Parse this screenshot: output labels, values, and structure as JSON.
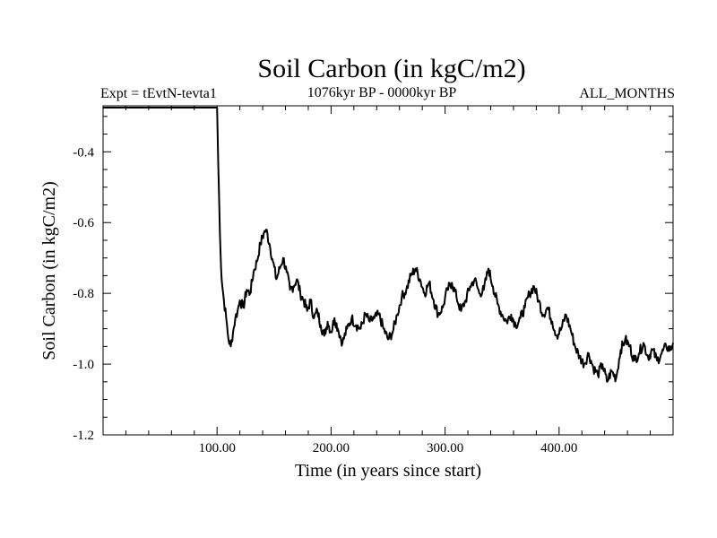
{
  "chart_data": {
    "type": "line",
    "title": "Soil Carbon (in kgC/m2)",
    "subtitle_left": "Expt = tEvtN-tevta1",
    "subtitle_center": "1076kyr BP - 0000kyr BP",
    "subtitle_right": "ALL_MONTHS",
    "xlabel": "Time (in years since start)",
    "ylabel": "Soil Carbon (in kgC/m2)",
    "xlim": [
      0,
      500
    ],
    "ylim": [
      -1.2,
      -0.27
    ],
    "xticks": [
      {
        "value": 100,
        "label": "100.00"
      },
      {
        "value": 200,
        "label": "200.00"
      },
      {
        "value": 300,
        "label": "300.00"
      },
      {
        "value": 400,
        "label": "400.00"
      }
    ],
    "yticks": [
      {
        "value": -0.4,
        "label": "-0.4"
      },
      {
        "value": -0.6,
        "label": "-0.6"
      },
      {
        "value": -0.8,
        "label": "-0.8"
      },
      {
        "value": -1.0,
        "label": "-1.0"
      },
      {
        "value": -1.2,
        "label": "-1.2"
      }
    ],
    "series": [
      {
        "name": "Soil Carbon",
        "color": "#000000",
        "x": [
          0,
          99,
          100,
          101,
          102,
          103,
          104,
          106,
          108,
          110,
          112,
          114,
          116,
          118,
          120,
          123,
          126,
          129,
          132,
          135,
          138,
          141,
          143,
          146,
          149,
          152,
          155,
          158,
          161,
          164,
          167,
          170,
          173,
          176,
          179,
          182,
          185,
          188,
          191,
          194,
          197,
          200,
          203,
          206,
          210,
          214,
          218,
          222,
          226,
          230,
          234,
          238,
          242,
          246,
          250,
          254,
          258,
          262,
          266,
          270,
          274,
          278,
          282,
          286,
          290,
          294,
          298,
          302,
          306,
          310,
          314,
          318,
          322,
          326,
          330,
          334,
          338,
          342,
          346,
          350,
          354,
          358,
          362,
          366,
          370,
          374,
          378,
          382,
          386,
          390,
          394,
          398,
          402,
          406,
          410,
          414,
          418,
          422,
          426,
          430,
          434,
          438,
          442,
          446,
          450,
          454,
          458,
          462,
          466,
          470,
          474,
          478,
          482,
          486,
          490,
          494,
          498,
          500
        ],
        "y": [
          -0.275,
          -0.275,
          -0.275,
          -0.43,
          -0.56,
          -0.68,
          -0.76,
          -0.82,
          -0.87,
          -0.93,
          -0.95,
          -0.91,
          -0.87,
          -0.85,
          -0.82,
          -0.84,
          -0.79,
          -0.8,
          -0.74,
          -0.71,
          -0.66,
          -0.63,
          -0.62,
          -0.66,
          -0.71,
          -0.76,
          -0.73,
          -0.7,
          -0.74,
          -0.79,
          -0.78,
          -0.76,
          -0.8,
          -0.82,
          -0.85,
          -0.82,
          -0.87,
          -0.85,
          -0.89,
          -0.92,
          -0.88,
          -0.91,
          -0.87,
          -0.9,
          -0.94,
          -0.9,
          -0.87,
          -0.89,
          -0.9,
          -0.86,
          -0.88,
          -0.87,
          -0.86,
          -0.9,
          -0.93,
          -0.91,
          -0.86,
          -0.81,
          -0.79,
          -0.75,
          -0.73,
          -0.76,
          -0.8,
          -0.77,
          -0.82,
          -0.86,
          -0.84,
          -0.79,
          -0.77,
          -0.81,
          -0.85,
          -0.82,
          -0.78,
          -0.76,
          -0.8,
          -0.79,
          -0.73,
          -0.78,
          -0.83,
          -0.86,
          -0.88,
          -0.86,
          -0.89,
          -0.87,
          -0.84,
          -0.8,
          -0.78,
          -0.82,
          -0.86,
          -0.84,
          -0.88,
          -0.92,
          -0.9,
          -0.86,
          -0.9,
          -0.95,
          -0.98,
          -1.0,
          -0.97,
          -1.01,
          -1.03,
          -1.0,
          -1.05,
          -1.02,
          -1.04,
          -0.96,
          -0.93,
          -0.95,
          -0.99,
          -0.97,
          -0.94,
          -0.98,
          -0.96,
          -0.99,
          -0.97,
          -0.95,
          -0.96,
          -0.94
        ]
      }
    ]
  }
}
